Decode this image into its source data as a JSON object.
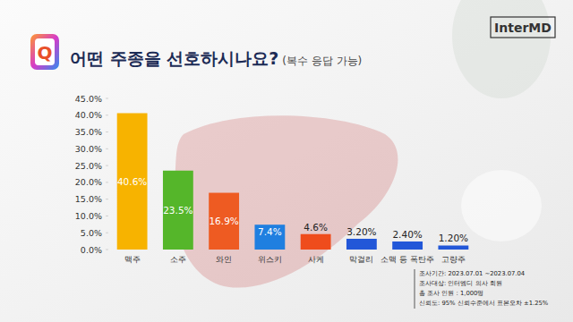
{
  "chart_data": {
    "type": "bar",
    "title": "어떤 주종을 선호하시나요?",
    "subtitle": "(복수 응답 가능)",
    "categories": [
      "맥주",
      "소주",
      "와인",
      "위스키",
      "사케",
      "막걸리",
      "소맥 등 폭탄주",
      "고량주"
    ],
    "values": [
      40.6,
      23.5,
      16.9,
      7.4,
      4.6,
      3.2,
      2.4,
      1.2
    ],
    "value_labels": [
      "40.6%",
      "23.5%",
      "16.9%",
      "7.4%",
      "4.6%",
      "3.20%",
      "2.40%",
      "1.20%"
    ],
    "colors": [
      "#f7b300",
      "#55b62a",
      "#ee5b22",
      "#1f7fe0",
      "#ef4c1c",
      "#2257d8",
      "#2257d8",
      "#2257d8"
    ],
    "ylim": [
      0,
      45
    ],
    "yticks": [
      {
        "value": 0,
        "label": "0.0%"
      },
      {
        "value": 5,
        "label": "5.0%"
      },
      {
        "value": 10,
        "label": "10.0%"
      },
      {
        "value": 15,
        "label": "15.0%"
      },
      {
        "value": 20,
        "label": "20.0%"
      },
      {
        "value": 25,
        "label": "25.0%"
      },
      {
        "value": 30,
        "label": "30.0%"
      },
      {
        "value": 35,
        "label": "35.0%"
      },
      {
        "value": 40,
        "label": "40.0%"
      },
      {
        "value": 45,
        "label": "45.0%"
      }
    ],
    "grid": false,
    "data_labels": true,
    "annotations": [
      "Q",
      "InterMD",
      "조사기간: 2023.07.01 ~2023.07.04",
      "조사대상: 인터엠디 의사 회원",
      "총 조사 인원 : 1,000명",
      "신뢰도: 95% 신뢰수준에서 표본오차 ±1.25%"
    ]
  }
}
